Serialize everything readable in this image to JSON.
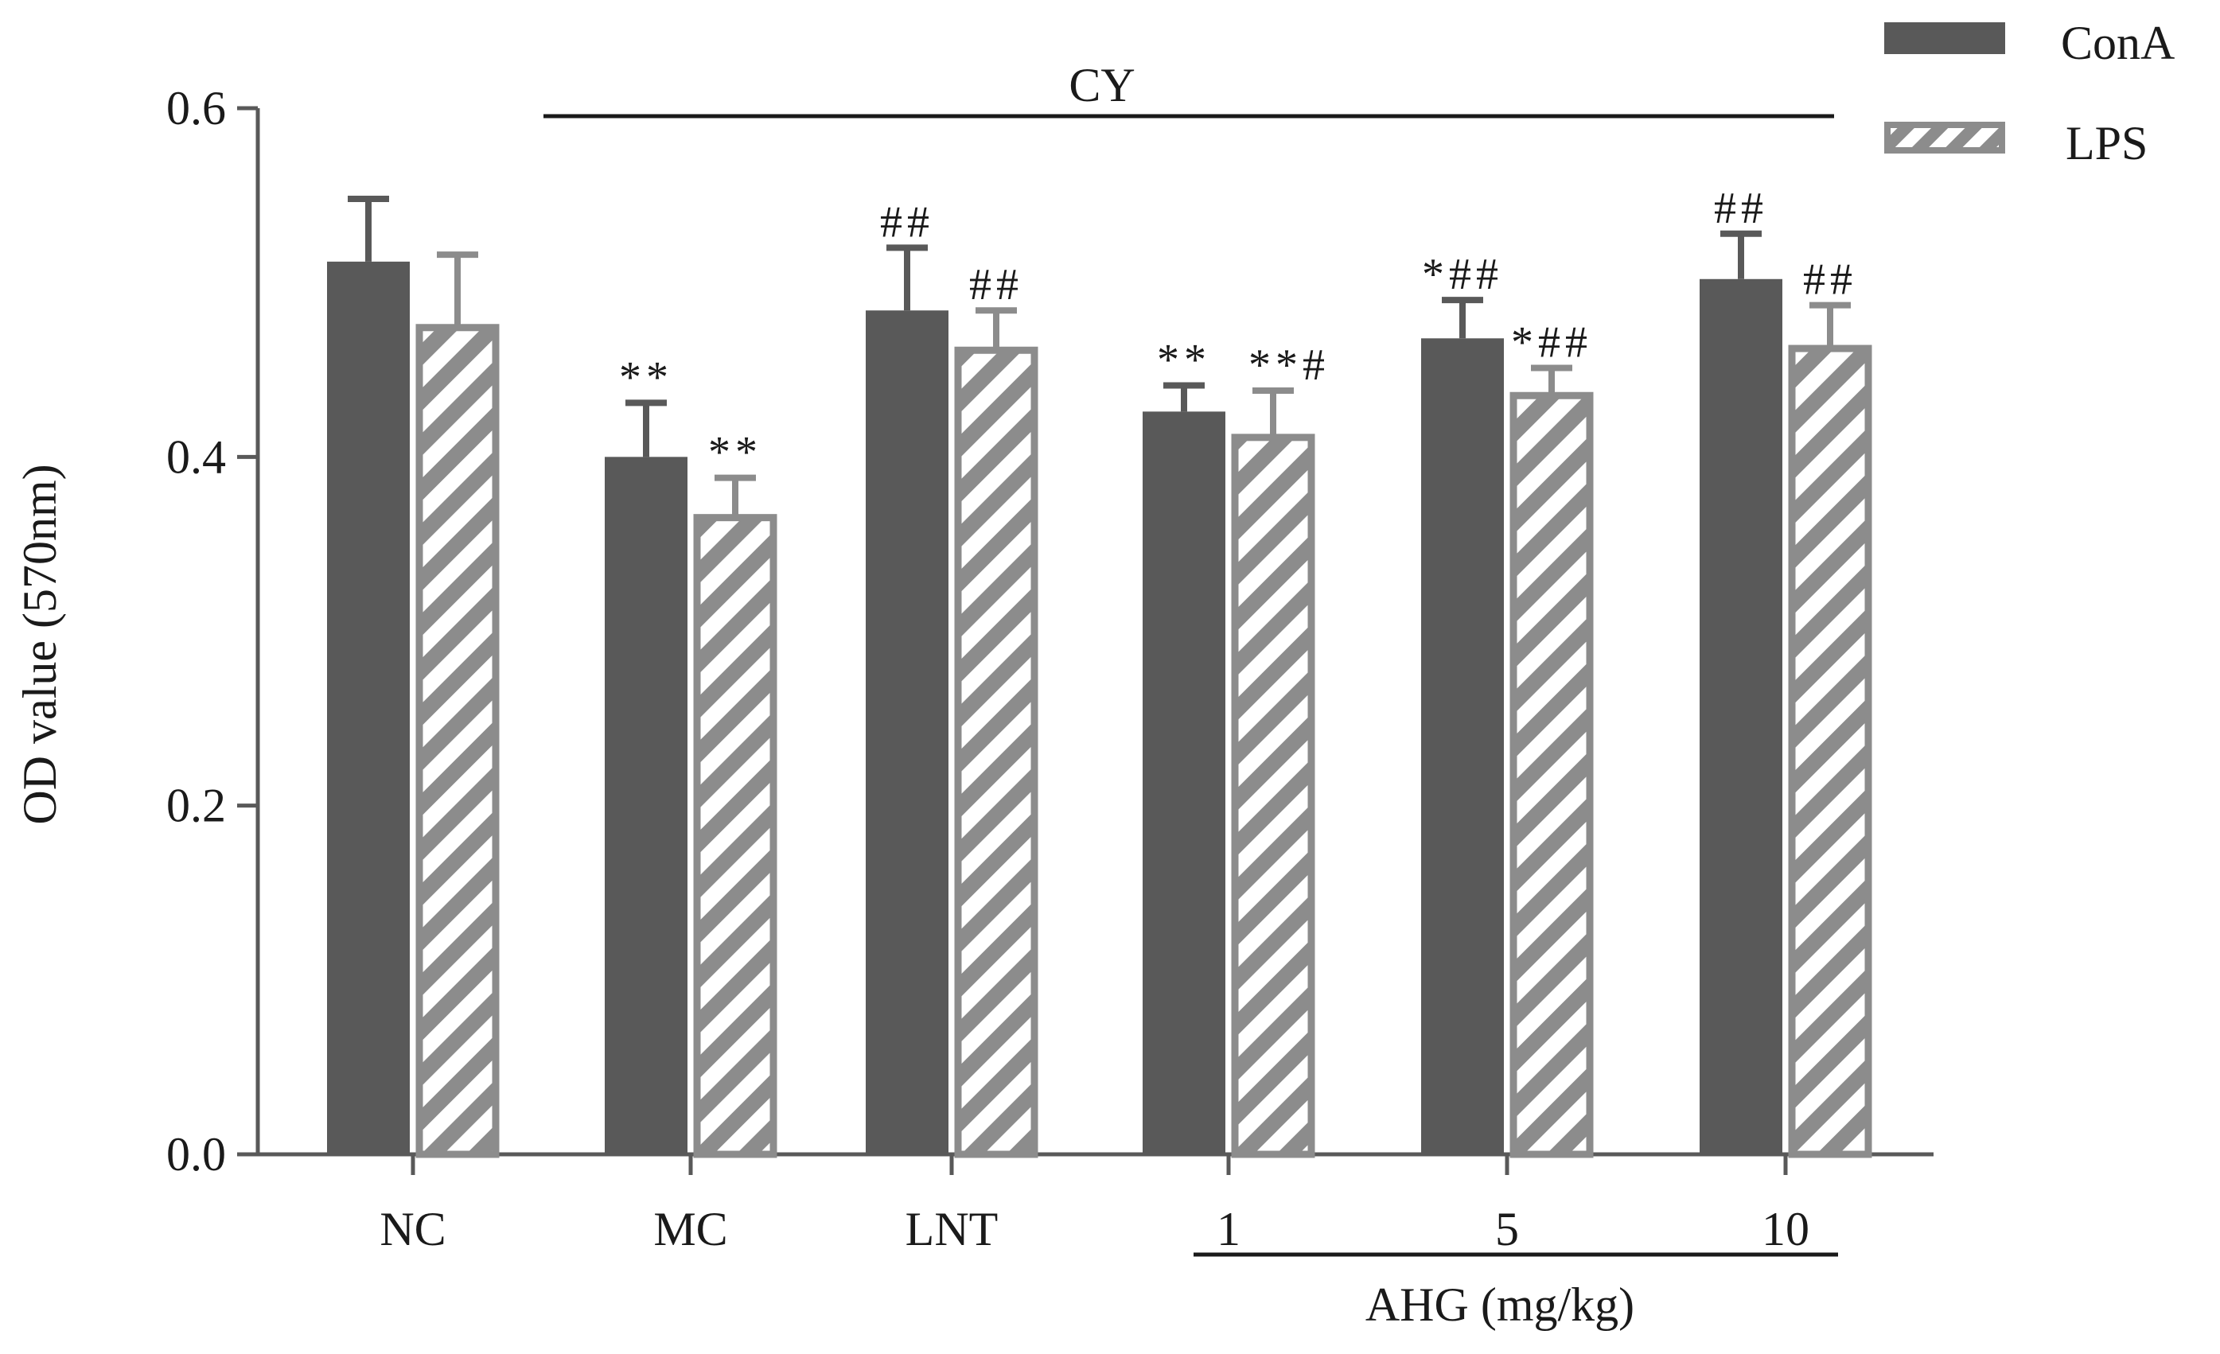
{
  "chart_data": {
    "type": "bar",
    "categories": [
      "NC",
      "MC",
      "LNT",
      "1",
      "5",
      "10"
    ],
    "series": [
      {
        "name": "ConA",
        "color": "#595959",
        "pattern": "solid",
        "values": [
          0.512,
          0.4,
          0.484,
          0.426,
          0.468,
          0.502
        ],
        "errors": [
          0.036,
          0.031,
          0.036,
          0.015,
          0.022,
          0.026
        ],
        "annotations": [
          "",
          "**",
          "##",
          "**",
          "*##",
          "##"
        ]
      },
      {
        "name": "LPS",
        "color": "#8c8c8c",
        "pattern": "hatched",
        "values": [
          0.476,
          0.367,
          0.463,
          0.413,
          0.437,
          0.464
        ],
        "errors": [
          0.04,
          0.021,
          0.021,
          0.025,
          0.014,
          0.023
        ],
        "annotations": [
          "",
          "**",
          "##",
          "**#",
          "*##",
          "##"
        ]
      }
    ],
    "ylabel": "OD value (570nm)",
    "xlabel": "",
    "ylim": [
      0,
      0.6
    ],
    "yticks": [
      "0.0",
      "0.2",
      "0.4",
      "0.6"
    ],
    "ytick_values": [
      0,
      0.2,
      0.4,
      0.6
    ],
    "grid": false,
    "legend_position": "top-right",
    "group_labels": [
      {
        "label": "CY",
        "from_category": 1,
        "to_category": 5,
        "position": "top"
      },
      {
        "label": "AHG (mg/kg)",
        "from_category": 3,
        "to_category": 5,
        "position": "bottom"
      }
    ]
  }
}
